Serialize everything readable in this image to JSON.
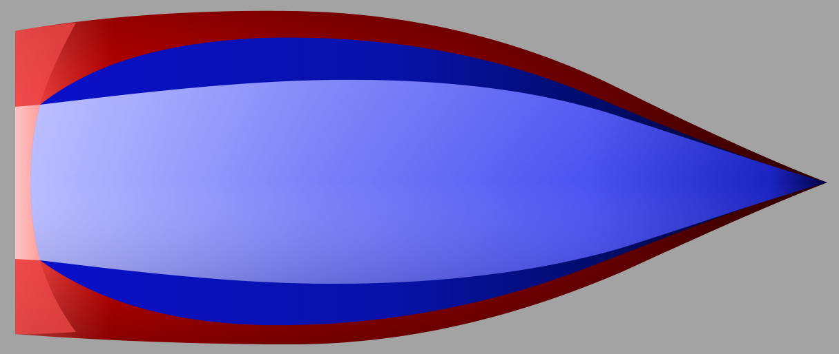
{
  "scene": {
    "background_color": "#a3a3a3",
    "outer_body": {
      "color_light": "#f05050",
      "color_mid": "#c00000",
      "color_dark": "#2a0000",
      "front_face_color": "#ffb0b0"
    },
    "inner_body": {
      "color_light": "#b8bcff",
      "color_mid": "#4a52f0",
      "color_dark": "#000022",
      "band_color_dark": "#000a55",
      "band_color_mid": "#0a10c8"
    }
  }
}
